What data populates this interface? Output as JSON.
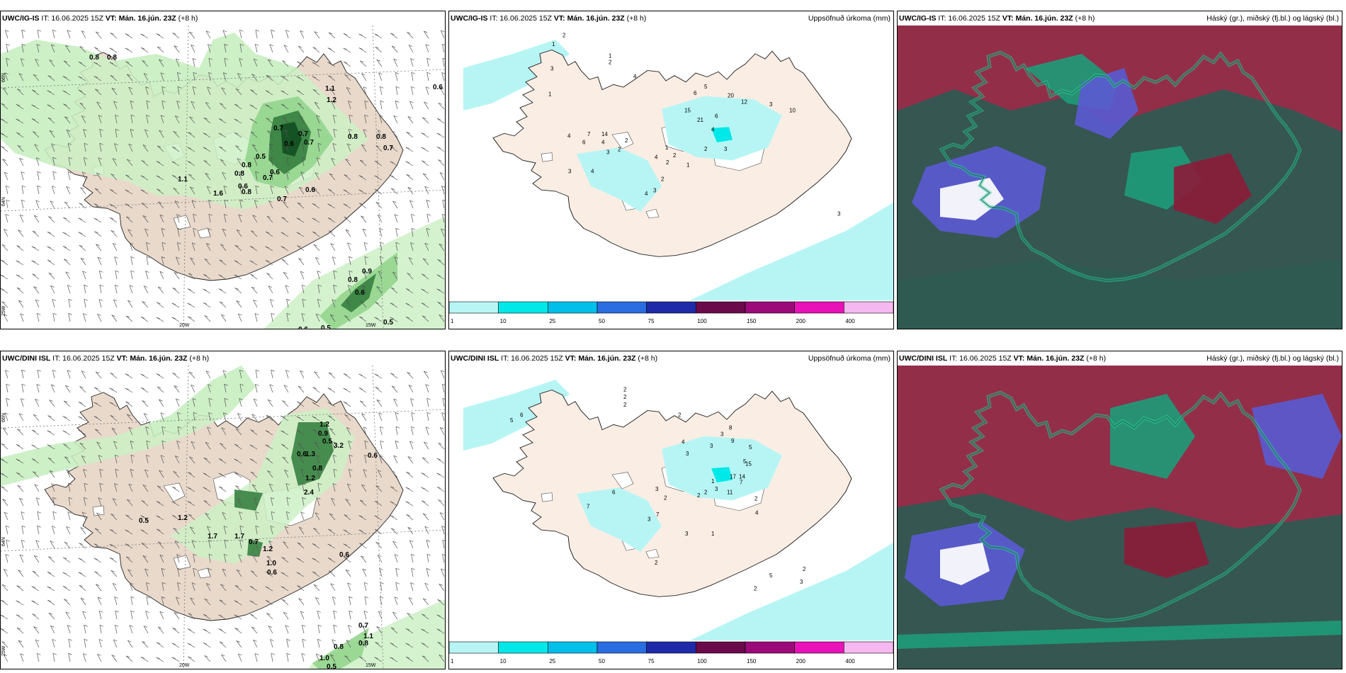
{
  "rows": [
    {
      "model": "UWC/IG-IS",
      "it_label": "IT: 16.06.2025 15Z",
      "vt_prefix": "VT:",
      "vt_value": "Mán. 16.jún. 23Z",
      "lead": "(+8 h)",
      "wind": {
        "grid_lat": [
          "66N",
          "64N"
        ],
        "grid_lon": [
          "20W",
          "15W"
        ],
        "grid_lon_left": "25W",
        "labels": [
          "0.8",
          "0.8",
          "1.1",
          "1.2",
          "0.7",
          "0.7",
          "0.6",
          "0.7",
          "0.8",
          "0.8",
          "0.7",
          "0.5",
          "0.6",
          "0.8",
          "0.6",
          "1.1",
          "0.7",
          "0.8",
          "1.6",
          "0.6",
          "0.7",
          "0.8",
          "0.9",
          "0.8",
          "0.6",
          "0.5",
          "0.5",
          "0.6",
          "0.6"
        ]
      },
      "precip": {
        "title": "Uppsöfnuð úrkoma (mm)",
        "labels": [
          "2",
          "1",
          "1",
          "2",
          "3",
          "1",
          "4",
          "6",
          "5",
          "20",
          "12",
          "3",
          "10",
          "15",
          "21",
          "6",
          "4",
          "3",
          "2",
          "1",
          "2",
          "1",
          "14",
          "7",
          "6",
          "4",
          "4",
          "3",
          "2",
          "2",
          "4",
          "3",
          "4",
          "2",
          "2",
          "3",
          "4",
          "3"
        ]
      },
      "cloud": {
        "title": "Háský (gr.), miðský (fj.bl.) og lágský (bl.)"
      }
    },
    {
      "model": "UWC/DINI ISL",
      "it_label": "IT: 16.06.2025 15Z",
      "vt_prefix": "VT:",
      "vt_value": "Mán. 16.jún. 23Z",
      "lead": "(+8 h)",
      "wind": {
        "grid_lat": [
          "66N",
          "64N"
        ],
        "grid_lon": [
          "20W",
          "15W"
        ],
        "grid_lon_left": "25W",
        "labels": [
          "1.2",
          "0.9",
          "0.5",
          "3.2",
          "0.6",
          "0.6",
          "1.3",
          "0.8",
          "1.2",
          "2.4",
          "0.5",
          "1.2",
          "1.7",
          "1.7",
          "0.7",
          "1.2",
          "1.0",
          "0.6",
          "0.6",
          "0.7",
          "1.1",
          "0.8",
          "0.8",
          "1.0",
          "0.5"
        ]
      },
      "precip": {
        "title": "Uppsöfnuð úrkoma (mm)",
        "labels": [
          "2",
          "2",
          "2",
          "6",
          "5",
          "2",
          "8",
          "3",
          "9",
          "5",
          "5",
          "15",
          "17",
          "14",
          "3",
          "3",
          "4",
          "7",
          "3",
          "2",
          "11",
          "1",
          "2",
          "4",
          "6",
          "7",
          "2",
          "3",
          "2",
          "7",
          "3",
          "1",
          "3",
          "2",
          "5",
          "2",
          "3",
          "2"
        ]
      },
      "cloud": {
        "title": "Háský (gr.), miðský (fj.bl.) og lágský (bl.)"
      }
    }
  ],
  "colorbar": {
    "ticks": [
      "1",
      "10",
      "25",
      "50",
      "75",
      "100",
      "150",
      "200",
      "400"
    ],
    "colors": [
      "#b7f5f5",
      "#00e8e8",
      "#00bfe8",
      "#2a6de0",
      "#1e2aa8",
      "#6a0a4a",
      "#9c0a7a",
      "#e812b8",
      "#f5b8f0"
    ]
  },
  "colors": {
    "land": "#efe2d6",
    "land_precip": "#faeee4",
    "precip_light": "#b7f5f5",
    "precip_mid": "#00e8e8",
    "green1": "#cdf0c6",
    "green2": "#8fd48a",
    "green3": "#2f7a3a",
    "green4": "#0f4a1e"
  }
}
